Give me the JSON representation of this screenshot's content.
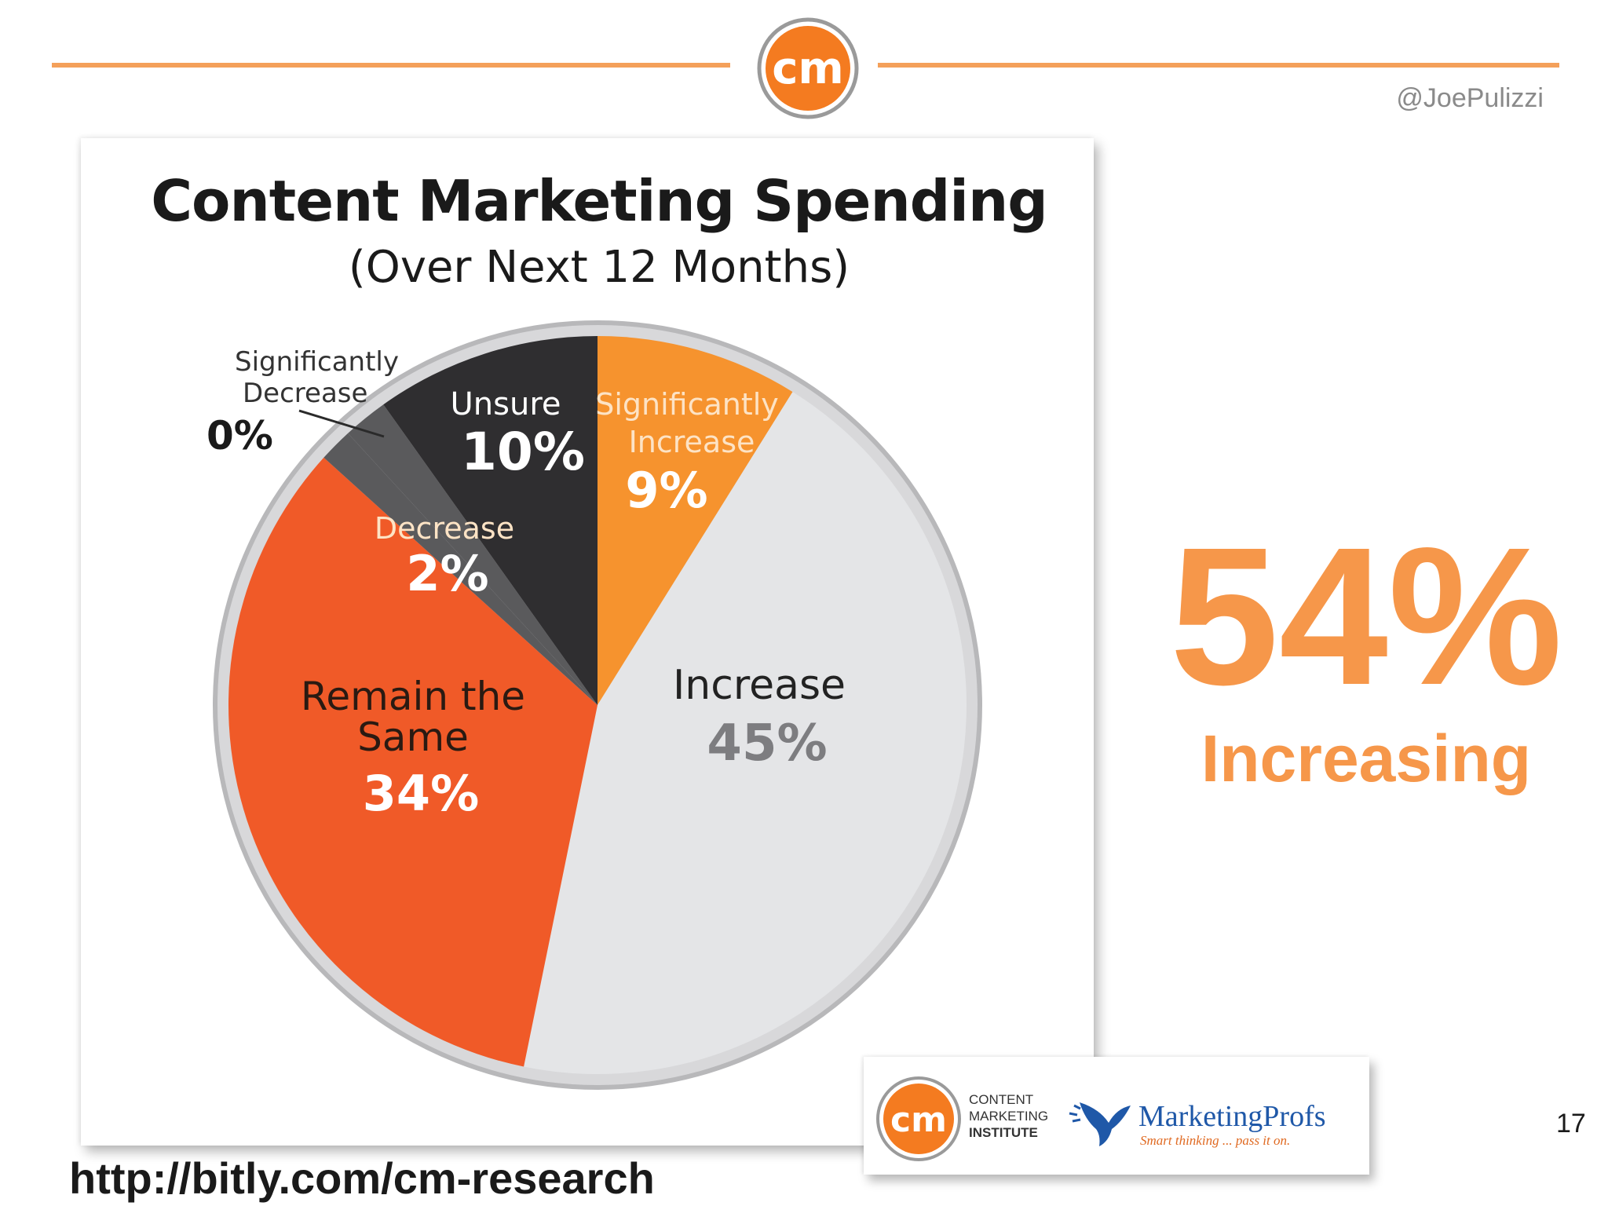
{
  "header": {
    "handle": "@JoePulizzi",
    "logo_text": "cm"
  },
  "chart_data": {
    "type": "pie",
    "title": "Content Marketing Spending",
    "subtitle": "(Over Next 12 Months)",
    "slices": [
      {
        "label": "Significantly Increase",
        "value": 9,
        "value_label": "9%",
        "color": "#f6932e"
      },
      {
        "label": "Increase",
        "value": 45,
        "value_label": "45%",
        "color": "#e4e5e7"
      },
      {
        "label": "Remain the Same",
        "value": 34,
        "value_label": "34%",
        "color": "#f05a28"
      },
      {
        "label": "Significantly Decrease",
        "value": 0,
        "value_label": "0%",
        "color": "#5a5a5c"
      },
      {
        "label": "Decrease",
        "value": 2,
        "value_label": "2%",
        "color": "#5a5a5c"
      },
      {
        "label": "Unsure",
        "value": 10,
        "value_label": "10%",
        "color": "#2f2e30"
      }
    ]
  },
  "callout": {
    "value": "54%",
    "label": "Increasing"
  },
  "footer": {
    "url": "http://bitly.com/cm-research",
    "page_number": "17",
    "logos": {
      "cmi_mark": "cm",
      "cmi_line1": "CONTENT",
      "cmi_line2": "MARKETING",
      "cmi_line3": "INSTITUTE",
      "mprofs_name": "MarketingProfs",
      "mprofs_tagline": "Smart thinking ... pass it on."
    }
  },
  "colors": {
    "accent_orange": "#f6974a",
    "header_line": "#f4a05a"
  }
}
